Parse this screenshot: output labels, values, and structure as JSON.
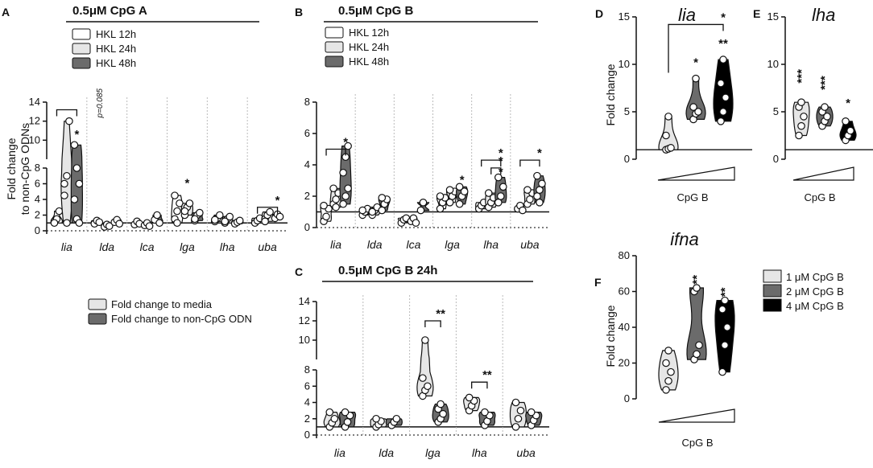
{
  "panels": {
    "A": {
      "letter": "A",
      "title": "0.5μM CpG A"
    },
    "B": {
      "letter": "B",
      "title": "0.5μM CpG B"
    },
    "C": {
      "letter": "C",
      "title": "0.5μM CpG B 24h"
    },
    "D": {
      "letter": "D",
      "title": "lia"
    },
    "E": {
      "letter": "E",
      "title": "lha"
    },
    "F": {
      "letter": "F",
      "title": "ifna"
    }
  },
  "legends": {
    "hkl": [
      "HKL 12h",
      "HKL 24h",
      "HKL 48h"
    ],
    "fold": [
      "Fold change to media",
      "Fold change to non-CpG ODN"
    ],
    "cpg": [
      "1 μM CpG B",
      "2 μM CpG B",
      "4 μM CpG B"
    ]
  },
  "labels": {
    "ylabel_A": "Fold change",
    "ylabel_A2": "to non-CpG ODNs",
    "ylabel_D": "Fold change",
    "ylabel_F": "Fold change",
    "xlabel_DEF": "CpG B",
    "p_value": "p=0.085"
  },
  "colors": {
    "light": "#e6e6e6",
    "medium": "#6b6b6b",
    "dark": "#000000",
    "dot_fill": "#ffffff"
  },
  "chart_data": [
    {
      "panel": "A",
      "type": "violin",
      "ylim_broken": [
        [
          0,
          8
        ],
        [
          8,
          14
        ]
      ],
      "ticks_lower": [
        0,
        2,
        4,
        6,
        8
      ],
      "ticks_upper": [
        10,
        12,
        14
      ],
      "categories": [
        "lia",
        "lda",
        "lca",
        "lga",
        "lha",
        "uba"
      ],
      "series_names": [
        "HKL 12h",
        "HKL 24h",
        "HKL 48h"
      ],
      "groups": [
        [
          [
            1.2,
            1.5,
            2.5,
            1.0
          ],
          [
            4.5,
            7.0,
            12.0,
            6.0,
            1.0
          ],
          [
            9.5,
            8.0,
            6.0,
            4.0,
            1.5,
            1.0
          ]
        ],
        [
          [
            0.9,
            1.3,
            1.1
          ],
          [
            0.5,
            0.8,
            0.6
          ],
          [
            1.1,
            1.4,
            0.9
          ]
        ],
        [
          [
            0.8,
            1.2,
            0.9
          ],
          [
            0.7,
            1.0,
            0.6
          ],
          [
            1.4,
            2.0,
            1.0
          ]
        ],
        [
          [
            1.5,
            2.5,
            3.5,
            4.5,
            1.0
          ],
          [
            2.0,
            3.0,
            3.5,
            2.5
          ],
          [
            1.3,
            2.0,
            2.3,
            1.5
          ]
        ],
        [
          [
            1.2,
            1.6,
            2.0,
            1.4
          ],
          [
            1.0,
            1.5,
            1.8,
            1.2
          ],
          [
            0.9,
            1.1,
            1.3
          ]
        ],
        [
          [
            1.0,
            1.3,
            1.6
          ],
          [
            1.5,
            2.0,
            2.4,
            1.2
          ],
          [
            1.6,
            2.1,
            1.8
          ]
        ]
      ],
      "brackets": [
        {
          "from": [
            0,
            0
          ],
          "to": [
            0,
            2
          ],
          "y": 13.2,
          "label": ""
        },
        {
          "from": [
            5,
            0
          ],
          "to": [
            5,
            2
          ],
          "y": 3.0,
          "label": "*"
        }
      ],
      "stars": [
        {
          "at": [
            0,
            2
          ],
          "y": 10.2,
          "label": "*"
        },
        {
          "at": [
            3,
            1
          ],
          "y": 5.6,
          "label": "*"
        }
      ]
    },
    {
      "panel": "B",
      "type": "violin",
      "ylim": [
        0,
        8
      ],
      "ticks": [
        0,
        2,
        4,
        6,
        8
      ],
      "categories": [
        "lia",
        "lda",
        "lca",
        "lga",
        "lha",
        "uba"
      ],
      "series_names": [
        "HKL 12h",
        "HKL 24h",
        "HKL 48h"
      ],
      "groups": [
        [
          [
            0.4,
            0.7,
            1.2,
            1.4
          ],
          [
            1.5,
            1.8,
            2.2,
            2.5,
            1.3
          ],
          [
            1.5,
            2.0,
            2.5,
            3.5,
            4.5,
            5.2
          ]
        ],
        [
          [
            0.8,
            1.0,
            1.2,
            1.1
          ],
          [
            0.8,
            1.1,
            1.3,
            1.0
          ],
          [
            1.1,
            1.5,
            1.8,
            1.9
          ]
        ],
        [
          [
            0.3,
            0.5,
            0.6
          ],
          [
            0.4,
            0.6,
            0.3
          ],
          [
            1.1,
            1.6
          ]
        ],
        [
          [
            1.2,
            1.6,
            1.9,
            2.0
          ],
          [
            1.6,
            2.0,
            2.3,
            2.4
          ],
          [
            1.5,
            2.0,
            2.3,
            2.6
          ]
        ],
        [
          [
            1.2,
            1.4,
            1.6
          ],
          [
            1.3,
            1.6,
            1.9,
            2.2
          ],
          [
            1.6,
            2.0,
            2.6,
            3.2
          ]
        ],
        [
          [
            1.2,
            1.4,
            1.1
          ],
          [
            1.5,
            1.8,
            2.2,
            2.4
          ],
          [
            2.0,
            2.4,
            2.8,
            3.3,
            1.6
          ]
        ]
      ],
      "brackets": [
        {
          "from": [
            0,
            0
          ],
          "to": [
            0,
            2
          ],
          "y": 5.0,
          "label": "*"
        },
        {
          "from": [
            4,
            0
          ],
          "to": [
            4,
            2
          ],
          "y": 4.3,
          "label": "*"
        },
        {
          "from": [
            4,
            1
          ],
          "to": [
            4,
            2
          ],
          "y": 3.8,
          "label": "*"
        },
        {
          "from": [
            5,
            0
          ],
          "to": [
            5,
            2
          ],
          "y": 4.3,
          "label": "*"
        }
      ],
      "stars": [
        {
          "at": [
            3,
            2
          ],
          "y": 2.8,
          "label": "*"
        },
        {
          "at": [
            4,
            2
          ],
          "y": 3.3,
          "label": "*"
        }
      ]
    },
    {
      "panel": "C",
      "type": "violin",
      "ylim_broken": [
        [
          0,
          8
        ],
        [
          8,
          14
        ]
      ],
      "ticks_lower": [
        0,
        2,
        4,
        6,
        8
      ],
      "ticks_upper": [
        10,
        12,
        14
      ],
      "categories": [
        "lia",
        "lda",
        "lga",
        "lha",
        "uba"
      ],
      "series_names": [
        "Fold change to media",
        "Fold change to non-CpG ODN"
      ],
      "groups": [
        [
          [
            1.0,
            1.5,
            2.0,
            2.8
          ],
          [
            1.0,
            1.6,
            2.4,
            2.8
          ]
        ],
        [
          [
            1.0,
            1.3,
            1.7,
            2.0
          ],
          [
            1.2,
            1.6,
            2.0
          ]
        ],
        [
          [
            4.8,
            5.5,
            6.0,
            7.0,
            10.0
          ],
          [
            1.6,
            2.0,
            2.6,
            3.2,
            3.8
          ]
        ],
        [
          [
            3.0,
            3.6,
            4.2,
            4.6
          ],
          [
            1.2,
            1.7,
            2.4,
            2.8
          ]
        ],
        [
          [
            1.0,
            2.0,
            3.0,
            4.0
          ],
          [
            1.2,
            1.8,
            2.4,
            2.8
          ]
        ]
      ],
      "brackets": [
        {
          "from": [
            2,
            0
          ],
          "to": [
            2,
            1
          ],
          "y": 12.0,
          "label": "**"
        },
        {
          "from": [
            3,
            0
          ],
          "to": [
            3,
            1
          ],
          "y": 6.5,
          "label": "**"
        }
      ],
      "stars": []
    },
    {
      "panel": "D",
      "type": "violin",
      "gene": "lia",
      "ylim": [
        0,
        15
      ],
      "ticks": [
        0,
        5,
        10,
        15
      ],
      "series_names": [
        "1 μM CpG B",
        "2 μM CpG B",
        "4 μM CpG B"
      ],
      "groups": [
        [
          1,
          1.1,
          1.2,
          2.5,
          4.5
        ],
        [
          4.2,
          4.8,
          5.0,
          5.5,
          8.5
        ],
        [
          4,
          5,
          6.5,
          8,
          10.5
        ]
      ],
      "brackets": [
        {
          "from": 0,
          "to": 2,
          "y": 14.2,
          "label": "*"
        }
      ],
      "stars": [
        {
          "at": 1,
          "y": 9.8,
          "label": "*"
        },
        {
          "at": 2,
          "y": 11.8,
          "label": "**"
        }
      ]
    },
    {
      "panel": "E",
      "type": "violin",
      "gene": "lha",
      "ylim": [
        0,
        15
      ],
      "ticks": [
        0,
        5,
        10,
        15
      ],
      "series_names": [
        "1 μM CpG B",
        "2 μM CpG B",
        "4 μM CpG B"
      ],
      "groups": [
        [
          2.5,
          3.5,
          4.5,
          5.5,
          6
        ],
        [
          3.5,
          4.0,
          4.5,
          5.0,
          5.5
        ],
        [
          2.0,
          2.5,
          3.0,
          4.0
        ]
      ],
      "brackets": [],
      "stars": [
        {
          "at": 0,
          "y": 8.0,
          "label": "***"
        },
        {
          "at": 1,
          "y": 7.3,
          "label": "***"
        },
        {
          "at": 2,
          "y": 5.5,
          "label": "*"
        }
      ]
    },
    {
      "panel": "F",
      "type": "violin",
      "gene": "ifna",
      "ylim": [
        0,
        80
      ],
      "ticks": [
        0,
        20,
        40,
        60,
        80
      ],
      "series_names": [
        "1 μM CpG B",
        "2 μM CpG B",
        "4 μM CpG B"
      ],
      "groups": [
        [
          5,
          10,
          15,
          20,
          27
        ],
        [
          22,
          25,
          30,
          60,
          62
        ],
        [
          15,
          30,
          40,
          50,
          55
        ]
      ],
      "brackets": [],
      "stars": [
        {
          "at": 1,
          "y": 64,
          "label": "**"
        },
        {
          "at": 2,
          "y": 57,
          "label": "**"
        }
      ]
    }
  ]
}
